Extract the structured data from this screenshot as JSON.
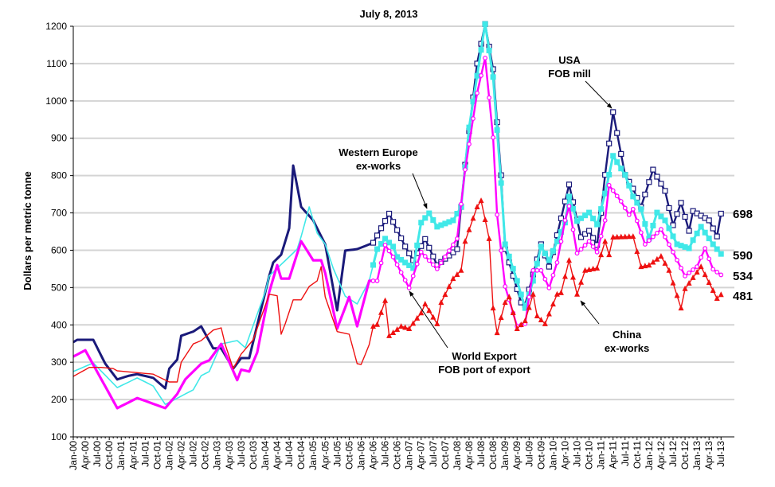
{
  "chart_data": {
    "type": "line",
    "title": "July 8, 2013",
    "xlabel": "",
    "ylabel": "Dollars per metric tonne",
    "ylim": [
      100,
      1200
    ],
    "yticks": [
      100,
      200,
      300,
      400,
      500,
      600,
      700,
      800,
      900,
      1000,
      1100,
      1200
    ],
    "xrange": [
      "2000-01",
      "2013-07"
    ],
    "xtick_labels": [
      "Jan-00",
      "Apr-00",
      "Jul-00",
      "Oct-00",
      "Jan-01",
      "Apr-01",
      "Jul-01",
      "Oct-01",
      "Jan-02",
      "Apr-02",
      "Jul-02",
      "Oct-02",
      "Jan-03",
      "Apr-03",
      "Jul-03",
      "Oct-03",
      "Jan-04",
      "Apr-04",
      "Jul-04",
      "Oct-04",
      "Jan-05",
      "Apr-05",
      "Jul-05",
      "Oct-05",
      "Jan-06",
      "Apr-06",
      "Jul-06",
      "Oct-06",
      "Jan-07",
      "Apr-07",
      "Jul-07",
      "Oct-07",
      "Jan-08",
      "Apr-08",
      "Jul-08",
      "Oct-08",
      "Jan-09",
      "Apr-09",
      "Jul-09",
      "Oct-09",
      "Jan-10",
      "Apr-10",
      "Jul-10",
      "Oct-10",
      "Jan-11",
      "Apr-11",
      "Jul-11",
      "Oct-11",
      "Jan-12",
      "Apr-12",
      "Jul-12",
      "Oct-12",
      "Jan-13",
      "Apr-13",
      "Jul-13"
    ],
    "grid": true,
    "series": [
      {
        "name": "USA FOB mill",
        "color": "#1a1a7a",
        "marker": "open-square",
        "end_label": "698",
        "points": [
          [
            "2000-01",
            354
          ],
          [
            "2000-02",
            360
          ],
          [
            "2000-06",
            360
          ],
          [
            "2000-09",
            296
          ],
          [
            "2000-12",
            254
          ],
          [
            "2001-03",
            264
          ],
          [
            "2001-05",
            268
          ],
          [
            "2001-09",
            258
          ],
          [
            "2001-12",
            230
          ],
          [
            "2002-01",
            283
          ],
          [
            "2002-03",
            307
          ],
          [
            "2002-04",
            371
          ],
          [
            "2002-07",
            382
          ],
          [
            "2002-09",
            396
          ],
          [
            "2002-12",
            337
          ],
          [
            "2003-02",
            337
          ],
          [
            "2003-05",
            283
          ],
          [
            "2003-07",
            311
          ],
          [
            "2003-09",
            311
          ],
          [
            "2004-02",
            531
          ],
          [
            "2004-03",
            567
          ],
          [
            "2004-05",
            588
          ],
          [
            "2004-07",
            659
          ],
          [
            "2004-08",
            827
          ],
          [
            "2004-10",
            716
          ],
          [
            "2005-01",
            680
          ],
          [
            "2005-04",
            616
          ],
          [
            "2005-07",
            439
          ],
          [
            "2005-09",
            599
          ],
          [
            "2005-12",
            603
          ],
          [
            "2006-04",
            620
          ],
          [
            "2006-08",
            698
          ],
          [
            "2006-12",
            610
          ],
          [
            "2007-02",
            573
          ],
          [
            "2007-05",
            630
          ],
          [
            "2007-08",
            560
          ],
          [
            "2008-01",
            603
          ],
          [
            "2008-03",
            829
          ],
          [
            "2008-06",
            1100
          ],
          [
            "2008-08",
            1206
          ],
          [
            "2008-10",
            1085
          ],
          [
            "2008-12",
            801
          ],
          [
            "2009-01",
            603
          ],
          [
            "2009-05",
            460
          ],
          [
            "2009-06",
            454
          ],
          [
            "2009-10",
            616
          ],
          [
            "2009-12",
            556
          ],
          [
            "2010-01",
            595
          ],
          [
            "2010-05",
            776
          ],
          [
            "2010-08",
            635
          ],
          [
            "2010-10",
            652
          ],
          [
            "2010-12",
            614
          ],
          [
            "2011-01",
            700
          ],
          [
            "2011-02",
            802
          ],
          [
            "2011-04",
            970
          ],
          [
            "2011-07",
            802
          ],
          [
            "2011-09",
            765
          ],
          [
            "2011-11",
            716
          ],
          [
            "2012-02",
            816
          ],
          [
            "2012-05",
            759
          ],
          [
            "2012-07",
            667
          ],
          [
            "2012-09",
            727
          ],
          [
            "2012-11",
            652
          ],
          [
            "2012-12",
            705
          ],
          [
            "2013-04",
            680
          ],
          [
            "2013-06",
            637
          ],
          [
            "2013-07",
            698
          ]
        ]
      },
      {
        "name": "Western Europe ex-works",
        "color": "#40e8e8",
        "marker": "filled-square",
        "end_label": "590",
        "points": [
          [
            "2000-01",
            275
          ],
          [
            "2000-06",
            298
          ],
          [
            "2000-12",
            232
          ],
          [
            "2001-05",
            258
          ],
          [
            "2001-09",
            236
          ],
          [
            "2001-12",
            187
          ],
          [
            "2002-02",
            198
          ],
          [
            "2002-07",
            226
          ],
          [
            "2002-09",
            264
          ],
          [
            "2002-11",
            275
          ],
          [
            "2003-02",
            349
          ],
          [
            "2003-06",
            358
          ],
          [
            "2003-08",
            339
          ],
          [
            "2004-01",
            488
          ],
          [
            "2004-02",
            531
          ],
          [
            "2004-09",
            603
          ],
          [
            "2004-10",
            637
          ],
          [
            "2004-12",
            716
          ],
          [
            "2005-02",
            646
          ],
          [
            "2005-04",
            616
          ],
          [
            "2005-06",
            552
          ],
          [
            "2005-09",
            477
          ],
          [
            "2005-12",
            456
          ],
          [
            "2006-03",
            518
          ],
          [
            "2006-05",
            603
          ],
          [
            "2006-07",
            631
          ],
          [
            "2006-09",
            610
          ],
          [
            "2006-10",
            582
          ],
          [
            "2007-02",
            552
          ],
          [
            "2007-04",
            674
          ],
          [
            "2007-06",
            699
          ],
          [
            "2007-08",
            663
          ],
          [
            "2007-12",
            680
          ],
          [
            "2008-02",
            716
          ],
          [
            "2008-04",
            929
          ],
          [
            "2008-08",
            1206
          ],
          [
            "2008-10",
            1064
          ],
          [
            "2008-12",
            780
          ],
          [
            "2009-01",
            616
          ],
          [
            "2009-04",
            518
          ],
          [
            "2009-06",
            445
          ],
          [
            "2009-08",
            518
          ],
          [
            "2009-10",
            610
          ],
          [
            "2009-12",
            573
          ],
          [
            "2010-04",
            674
          ],
          [
            "2010-05",
            744
          ],
          [
            "2010-07",
            678
          ],
          [
            "2010-10",
            701
          ],
          [
            "2010-12",
            669
          ],
          [
            "2011-02",
            752
          ],
          [
            "2011-04",
            853
          ],
          [
            "2011-07",
            802
          ],
          [
            "2011-09",
            744
          ],
          [
            "2011-11",
            710
          ],
          [
            "2012-01",
            631
          ],
          [
            "2012-03",
            701
          ],
          [
            "2012-05",
            680
          ],
          [
            "2012-08",
            616
          ],
          [
            "2012-11",
            605
          ],
          [
            "2012-12",
            627
          ],
          [
            "2013-02",
            663
          ],
          [
            "2013-05",
            616
          ],
          [
            "2013-07",
            590
          ]
        ]
      },
      {
        "name": "World Export FOB port of export",
        "color": "#ff00ff",
        "marker": "open-circle",
        "end_label": "534",
        "points": [
          [
            "2000-01",
            315
          ],
          [
            "2000-04",
            332
          ],
          [
            "2000-12",
            177
          ],
          [
            "2001-05",
            204
          ],
          [
            "2001-12",
            177
          ],
          [
            "2002-03",
            215
          ],
          [
            "2002-05",
            254
          ],
          [
            "2002-09",
            296
          ],
          [
            "2002-11",
            305
          ],
          [
            "2003-02",
            349
          ],
          [
            "2003-06",
            252
          ],
          [
            "2003-07",
            280
          ],
          [
            "2003-09",
            275
          ],
          [
            "2003-11",
            326
          ],
          [
            "2004-02",
            488
          ],
          [
            "2004-04",
            560
          ],
          [
            "2004-05",
            524
          ],
          [
            "2004-07",
            524
          ],
          [
            "2004-10",
            624
          ],
          [
            "2005-01",
            573
          ],
          [
            "2005-03",
            573
          ],
          [
            "2005-04",
            539
          ],
          [
            "2005-07",
            390
          ],
          [
            "2005-10",
            475
          ],
          [
            "2005-12",
            396
          ],
          [
            "2006-03",
            518
          ],
          [
            "2006-05",
            518
          ],
          [
            "2006-07",
            614
          ],
          [
            "2006-09",
            582
          ],
          [
            "2007-01",
            499
          ],
          [
            "2007-04",
            595
          ],
          [
            "2007-08",
            550
          ],
          [
            "2008-01",
            631
          ],
          [
            "2008-03",
            816
          ],
          [
            "2008-06",
            1021
          ],
          [
            "2008-08",
            1115
          ],
          [
            "2008-10",
            902
          ],
          [
            "2008-11",
            695
          ],
          [
            "2009-01",
            503
          ],
          [
            "2009-04",
            396
          ],
          [
            "2009-06",
            403
          ],
          [
            "2009-08",
            546
          ],
          [
            "2009-10",
            546
          ],
          [
            "2009-12",
            499
          ],
          [
            "2010-02",
            567
          ],
          [
            "2010-04",
            680
          ],
          [
            "2010-05",
            718
          ],
          [
            "2010-07",
            592
          ],
          [
            "2010-10",
            624
          ],
          [
            "2010-12",
            595
          ],
          [
            "2011-02",
            680
          ],
          [
            "2011-03",
            774
          ],
          [
            "2011-06",
            731
          ],
          [
            "2011-08",
            695
          ],
          [
            "2011-09",
            710
          ],
          [
            "2011-12",
            616
          ],
          [
            "2012-04",
            656
          ],
          [
            "2012-07",
            595
          ],
          [
            "2012-10",
            531
          ],
          [
            "2013-01",
            556
          ],
          [
            "2013-03",
            605
          ],
          [
            "2013-05",
            549
          ],
          [
            "2013-07",
            534
          ]
        ]
      },
      {
        "name": "China ex-works",
        "color": "#ee1111",
        "marker": "triangle",
        "end_label": "481",
        "points": [
          [
            "2000-01",
            262
          ],
          [
            "2000-05",
            286
          ],
          [
            "2000-08",
            286
          ],
          [
            "2000-11",
            283
          ],
          [
            "2000-12",
            277
          ],
          [
            "2001-05",
            272
          ],
          [
            "2001-09",
            268
          ],
          [
            "2002-01",
            247
          ],
          [
            "2002-03",
            247
          ],
          [
            "2002-04",
            300
          ],
          [
            "2002-07",
            349
          ],
          [
            "2002-09",
            358
          ],
          [
            "2002-12",
            386
          ],
          [
            "2003-02",
            392
          ],
          [
            "2003-03",
            347
          ],
          [
            "2003-05",
            283
          ],
          [
            "2003-07",
            322
          ],
          [
            "2003-10",
            360
          ],
          [
            "2004-02",
            482
          ],
          [
            "2004-04",
            478
          ],
          [
            "2004-05",
            375
          ],
          [
            "2004-06",
            403
          ],
          [
            "2004-08",
            467
          ],
          [
            "2004-10",
            467
          ],
          [
            "2004-12",
            503
          ],
          [
            "2005-02",
            518
          ],
          [
            "2005-03",
            556
          ],
          [
            "2005-04",
            475
          ],
          [
            "2005-07",
            382
          ],
          [
            "2005-10",
            375
          ],
          [
            "2005-12",
            296
          ],
          [
            "2006-01",
            294
          ],
          [
            "2006-03",
            347
          ],
          [
            "2006-04",
            396
          ],
          [
            "2006-05",
            401
          ],
          [
            "2006-07",
            465
          ],
          [
            "2006-08",
            371
          ],
          [
            "2006-11",
            396
          ],
          [
            "2007-01",
            390
          ],
          [
            "2007-04",
            432
          ],
          [
            "2007-05",
            456
          ],
          [
            "2007-08",
            403
          ],
          [
            "2007-09",
            460
          ],
          [
            "2007-12",
            524
          ],
          [
            "2008-02",
            546
          ],
          [
            "2008-03",
            624
          ],
          [
            "2008-06",
            716
          ],
          [
            "2008-07",
            733
          ],
          [
            "2008-09",
            631
          ],
          [
            "2008-10",
            445
          ],
          [
            "2008-11",
            379
          ],
          [
            "2009-01",
            460
          ],
          [
            "2009-02",
            475
          ],
          [
            "2009-04",
            390
          ],
          [
            "2009-06",
            411
          ],
          [
            "2009-08",
            482
          ],
          [
            "2009-09",
            424
          ],
          [
            "2009-11",
            403
          ],
          [
            "2010-02",
            482
          ],
          [
            "2010-03",
            486
          ],
          [
            "2010-05",
            573
          ],
          [
            "2010-07",
            482
          ],
          [
            "2010-09",
            546
          ],
          [
            "2010-12",
            552
          ],
          [
            "2011-02",
            624
          ],
          [
            "2011-03",
            588
          ],
          [
            "2011-04",
            635
          ],
          [
            "2011-09",
            637
          ],
          [
            "2011-11",
            556
          ],
          [
            "2012-01",
            560
          ],
          [
            "2012-04",
            584
          ],
          [
            "2012-06",
            546
          ],
          [
            "2012-09",
            445
          ],
          [
            "2012-10",
            497
          ],
          [
            "2013-02",
            556
          ],
          [
            "2013-06",
            471
          ],
          [
            "2013-07",
            481
          ]
        ]
      }
    ],
    "annotations": [
      {
        "lines": [
          "USA",
          "FOB mill"
        ],
        "series": "USA FOB mill"
      },
      {
        "lines": [
          "Western Europe",
          "ex-works"
        ],
        "series": "Western Europe ex-works"
      },
      {
        "lines": [
          "World Export",
          "FOB port of export"
        ],
        "series": "World Export FOB port of export"
      },
      {
        "lines": [
          "China",
          "ex-works"
        ],
        "series": "China ex-works"
      }
    ]
  }
}
